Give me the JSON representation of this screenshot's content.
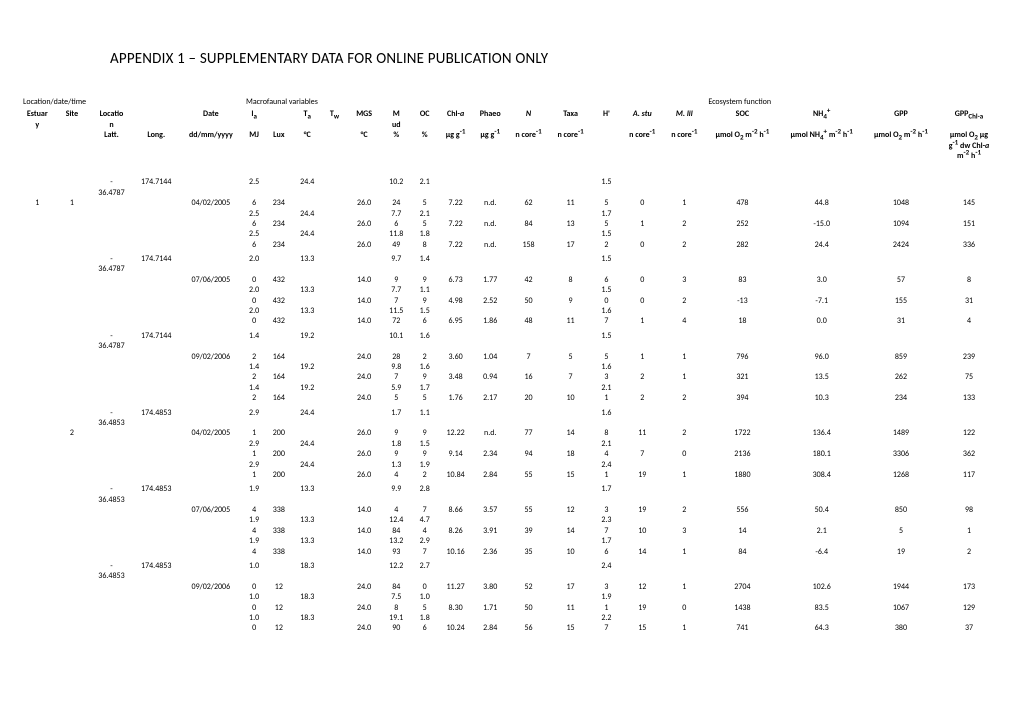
{
  "title": "APPENDIX 1 – SUPPLEMENTARY DATA FOR ONLINE PUBLICATION ONLY",
  "sections": {
    "s1": "Location/date/time",
    "s2": "Macrofaunal variables",
    "s3": "Ecosystem function"
  },
  "cols": [
    "Estuary",
    "Site",
    "Location",
    "",
    "Date",
    "Iₐ",
    "",
    "Tₐ",
    "Tₛ",
    "MGS",
    "Mud",
    "OC",
    "Chl-a",
    "Phaeo",
    "N",
    "Taxa",
    "H'",
    "A. stu",
    "M. lil",
    "SOC",
    "NH₄⁺",
    "GPP",
    "GPP_Chl-a"
  ],
  "units": [
    "",
    "",
    "Latt.",
    "Long.",
    "dd/mm/yyyy",
    "MJ",
    "Lux",
    "°C",
    "",
    "°C",
    "%",
    "%",
    "µg g⁻¹",
    "µg g⁻¹",
    "n core⁻¹",
    "n core⁻¹",
    "",
    "n core⁻¹",
    "n core⁻¹",
    "µmol O₂ m⁻² h⁻¹",
    "µmol NH₄⁺ m⁻² h⁻¹",
    "µmol O₂ m⁻² h⁻¹",
    "µmol O₂ µg g⁻¹ dw Chl-a m⁻² h⁻¹"
  ],
  "rows": [
    [
      "",
      "",
      "-36.4787",
      "174.7144",
      "",
      "2.5",
      "",
      "24.4",
      "",
      "",
      "10.2",
      "2.1",
      "",
      "",
      "",
      "",
      "1.5",
      "",
      "",
      "",
      "",
      "",
      ""
    ],
    [
      "1",
      "1",
      "",
      "",
      "04/02/2005",
      "6",
      "234",
      "",
      "",
      "26.0",
      "24",
      "5",
      "7.22",
      "n.d.",
      "62",
      "11",
      "5",
      "0",
      "1",
      "478",
      "44.8",
      "1048",
      "145"
    ],
    [
      "",
      "",
      "",
      "",
      "",
      "2.5",
      "",
      "24.4",
      "",
      "",
      "7.7",
      "2.1",
      "",
      "",
      "",
      "",
      "1.7",
      "",
      "",
      "",
      "",
      "",
      ""
    ],
    [
      "",
      "",
      "",
      "",
      "",
      "6",
      "234",
      "",
      "",
      "26.0",
      "6",
      "5",
      "7.22",
      "n.d.",
      "84",
      "13",
      "5",
      "1",
      "2",
      "252",
      "-15.0",
      "1094",
      "151"
    ],
    [
      "",
      "",
      "",
      "",
      "",
      "2.5",
      "",
      "24.4",
      "",
      "",
      "11.8",
      "1.8",
      "",
      "",
      "",
      "",
      "1.5",
      "",
      "",
      "",
      "",
      "",
      ""
    ],
    [
      "",
      "",
      "",
      "",
      "",
      "6",
      "234",
      "",
      "",
      "26.0",
      "49",
      "8",
      "7.22",
      "n.d.",
      "158",
      "17",
      "2",
      "0",
      "2",
      "282",
      "24.4",
      "2424",
      "336"
    ],
    [
      "",
      "",
      "-36.4787",
      "174.7144",
      "",
      "2.0",
      "",
      "13.3",
      "",
      "",
      "9.7",
      "1.4",
      "",
      "",
      "",
      "",
      "1.5",
      "",
      "",
      "",
      "",
      "",
      ""
    ],
    [
      "",
      "",
      "",
      "",
      "07/06/2005",
      "0",
      "432",
      "",
      "",
      "14.0",
      "9",
      "9",
      "6.73",
      "1.77",
      "42",
      "8",
      "6",
      "0",
      "3",
      "83",
      "3.0",
      "57",
      "8"
    ],
    [
      "",
      "",
      "",
      "",
      "",
      "2.0",
      "",
      "13.3",
      "",
      "",
      "7.7",
      "1.1",
      "",
      "",
      "",
      "",
      "1.5",
      "",
      "",
      "",
      "",
      "",
      ""
    ],
    [
      "",
      "",
      "",
      "",
      "",
      "0",
      "432",
      "",
      "",
      "14.0",
      "7",
      "9",
      "4.98",
      "2.52",
      "50",
      "9",
      "0",
      "0",
      "2",
      "-13",
      "-7.1",
      "155",
      "31"
    ],
    [
      "",
      "",
      "",
      "",
      "",
      "2.0",
      "",
      "13.3",
      "",
      "",
      "11.5",
      "1.5",
      "",
      "",
      "",
      "",
      "1.6",
      "",
      "",
      "",
      "",
      "",
      ""
    ],
    [
      "",
      "",
      "",
      "",
      "",
      "0",
      "432",
      "",
      "",
      "14.0",
      "72",
      "6",
      "6.95",
      "1.86",
      "48",
      "11",
      "7",
      "1",
      "4",
      "18",
      "0.0",
      "31",
      "4"
    ],
    [
      "",
      "",
      "-36.4787",
      "174.7144",
      "",
      "1.4",
      "",
      "19.2",
      "",
      "",
      "10.1",
      "1.6",
      "",
      "",
      "",
      "",
      "1.5",
      "",
      "",
      "",
      "",
      "",
      ""
    ],
    [
      "",
      "",
      "",
      "",
      "09/02/2006",
      "2",
      "164",
      "",
      "",
      "24.0",
      "28",
      "2",
      "3.60",
      "1.04",
      "7",
      "5",
      "5",
      "1",
      "1",
      "796",
      "96.0",
      "859",
      "239"
    ],
    [
      "",
      "",
      "",
      "",
      "",
      "1.4",
      "",
      "19.2",
      "",
      "",
      "9.8",
      "1.6",
      "",
      "",
      "",
      "",
      "1.6",
      "",
      "",
      "",
      "",
      "",
      ""
    ],
    [
      "",
      "",
      "",
      "",
      "",
      "2",
      "164",
      "",
      "",
      "24.0",
      "7",
      "9",
      "3.48",
      "0.94",
      "16",
      "7",
      "3",
      "2",
      "1",
      "321",
      "13.5",
      "262",
      "75"
    ],
    [
      "",
      "",
      "",
      "",
      "",
      "1.4",
      "",
      "19.2",
      "",
      "",
      "5.9",
      "1.7",
      "",
      "",
      "",
      "",
      "2.1",
      "",
      "",
      "",
      "",
      "",
      ""
    ],
    [
      "",
      "",
      "",
      "",
      "",
      "2",
      "164",
      "",
      "",
      "24.0",
      "5",
      "5",
      "1.76",
      "2.17",
      "20",
      "10",
      "1",
      "2",
      "2",
      "394",
      "10.3",
      "234",
      "133"
    ],
    [
      "",
      "",
      "-36.4853",
      "174.4853",
      "",
      "2.9",
      "",
      "24.4",
      "",
      "",
      "1.7",
      "1.1",
      "",
      "",
      "",
      "",
      "1.6",
      "",
      "",
      "",
      "",
      "",
      ""
    ],
    [
      "",
      "2",
      "",
      "",
      "04/02/2005",
      "1",
      "200",
      "",
      "",
      "26.0",
      "9",
      "9",
      "12.22",
      "n.d.",
      "77",
      "14",
      "8",
      "11",
      "2",
      "1722",
      "136.4",
      "1489",
      "122"
    ],
    [
      "",
      "",
      "",
      "",
      "",
      "2.9",
      "",
      "24.4",
      "",
      "",
      "1.8",
      "1.5",
      "",
      "",
      "",
      "",
      "2.1",
      "",
      "",
      "",
      "",
      "",
      ""
    ],
    [
      "",
      "",
      "",
      "",
      "",
      "1",
      "200",
      "",
      "",
      "26.0",
      "9",
      "9",
      "9.14",
      "2.34",
      "94",
      "18",
      "4",
      "7",
      "0",
      "2136",
      "180.1",
      "3306",
      "362"
    ],
    [
      "",
      "",
      "",
      "",
      "",
      "2.9",
      "",
      "24.4",
      "",
      "",
      "1.3",
      "1.9",
      "",
      "",
      "",
      "",
      "2.4",
      "",
      "",
      "",
      "",
      "",
      ""
    ],
    [
      "",
      "",
      "",
      "",
      "",
      "1",
      "200",
      "",
      "",
      "26.0",
      "4",
      "2",
      "10.84",
      "2.84",
      "55",
      "15",
      "1",
      "19",
      "1",
      "1880",
      "308.4",
      "1268",
      "117"
    ],
    [
      "",
      "",
      "-36.4853",
      "174.4853",
      "",
      "1.9",
      "",
      "13.3",
      "",
      "",
      "9.9",
      "2.8",
      "",
      "",
      "",
      "",
      "1.7",
      "",
      "",
      "",
      "",
      "",
      ""
    ],
    [
      "",
      "",
      "",
      "",
      "07/06/2005",
      "4",
      "338",
      "",
      "",
      "14.0",
      "4",
      "7",
      "8.66",
      "3.57",
      "55",
      "12",
      "3",
      "19",
      "2",
      "556",
      "50.4",
      "850",
      "98"
    ],
    [
      "",
      "",
      "",
      "",
      "",
      "1.9",
      "",
      "13.3",
      "",
      "",
      "12.4",
      "4.7",
      "",
      "",
      "",
      "",
      "2.3",
      "",
      "",
      "",
      "",
      "",
      ""
    ],
    [
      "",
      "",
      "",
      "",
      "",
      "4",
      "338",
      "",
      "",
      "14.0",
      "84",
      "4",
      "8.26",
      "3.91",
      "39",
      "14",
      "7",
      "10",
      "3",
      "14",
      "2.1",
      "5",
      "1"
    ],
    [
      "",
      "",
      "",
      "",
      "",
      "1.9",
      "",
      "13.3",
      "",
      "",
      "13.2",
      "2.9",
      "",
      "",
      "",
      "",
      "1.7",
      "",
      "",
      "",
      "",
      "",
      ""
    ],
    [
      "",
      "",
      "",
      "",
      "",
      "4",
      "338",
      "",
      "",
      "14.0",
      "93",
      "7",
      "10.16",
      "2.36",
      "35",
      "10",
      "6",
      "14",
      "1",
      "84",
      "-6.4",
      "19",
      "2"
    ],
    [
      "",
      "",
      "-36.4853",
      "174.4853",
      "",
      "1.0",
      "",
      "18.3",
      "",
      "",
      "12.2",
      "2.7",
      "",
      "",
      "",
      "",
      "2.4",
      "",
      "",
      "",
      "",
      "",
      ""
    ],
    [
      "",
      "",
      "",
      "",
      "09/02/2006",
      "0",
      "12",
      "",
      "",
      "24.0",
      "84",
      "0",
      "11.27",
      "3.80",
      "52",
      "17",
      "3",
      "12",
      "1",
      "2704",
      "102.6",
      "1944",
      "173"
    ],
    [
      "",
      "",
      "",
      "",
      "",
      "1.0",
      "",
      "18.3",
      "",
      "",
      "7.5",
      "1.0",
      "",
      "",
      "",
      "",
      "1.9",
      "",
      "",
      "",
      "",
      "",
      ""
    ],
    [
      "",
      "",
      "",
      "",
      "",
      "0",
      "12",
      "",
      "",
      "24.0",
      "8",
      "5",
      "8.30",
      "1.71",
      "50",
      "11",
      "1",
      "19",
      "0",
      "1438",
      "83.5",
      "1067",
      "129"
    ],
    [
      "",
      "",
      "",
      "",
      "",
      "1.0",
      "",
      "18.3",
      "",
      "",
      "19.1",
      "1.8",
      "",
      "",
      "",
      "",
      "2.2",
      "",
      "",
      "",
      "",
      "",
      ""
    ],
    [
      "",
      "",
      "",
      "",
      "",
      "0",
      "12",
      "",
      "",
      "24.0",
      "90",
      "6",
      "10.24",
      "2.84",
      "56",
      "15",
      "7",
      "15",
      "1",
      "741",
      "64.3",
      "380",
      "37"
    ]
  ],
  "bblocks": [
    0,
    6,
    12,
    18,
    24,
    30
  ],
  "colw": [
    "28",
    "28",
    "36",
    "36",
    "52",
    "18",
    "22",
    "24",
    "20",
    "28",
    "24",
    "22",
    "28",
    "28",
    "34",
    "34",
    "24",
    "34",
    "34",
    "60",
    "66",
    "56",
    "50"
  ]
}
